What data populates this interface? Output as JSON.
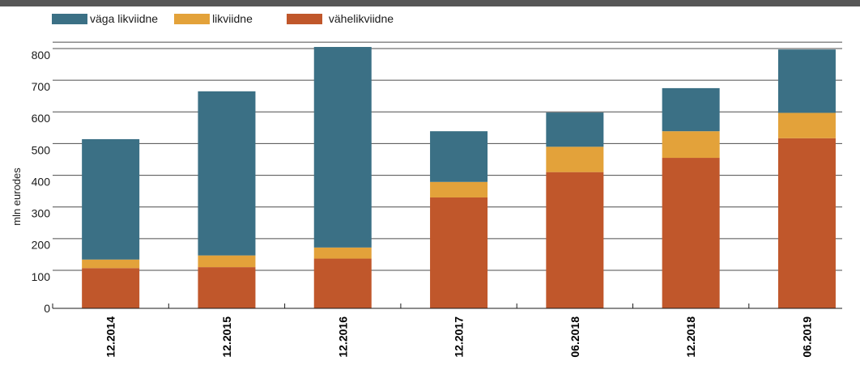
{
  "chart_data": {
    "type": "bar",
    "stacked": true,
    "categories": [
      "12.2014",
      "12.2015",
      "12.2016",
      "12.2017",
      "06.2018",
      "12.2018",
      "06.2019"
    ],
    "series": [
      {
        "name": "vähelikviidne",
        "color": "#C0572B",
        "values": [
          127,
          130,
          157,
          350,
          430,
          475,
          537
        ]
      },
      {
        "name": "likviidne",
        "color": "#E3A23A",
        "values": [
          27,
          37,
          35,
          49,
          80,
          84,
          80
        ]
      },
      {
        "name": "väga likviidne",
        "color": "#3B7085",
        "values": [
          380,
          518,
          633,
          160,
          108,
          136,
          200
        ]
      }
    ],
    "legend": [
      "väga likviidne",
      "likviidne",
      "vähelikviidne"
    ],
    "legend_position": "top-left",
    "ylabel": "mln eurodes",
    "xlabel": "",
    "ylim": [
      0,
      840
    ],
    "yticks": [
      0,
      100,
      200,
      300,
      400,
      500,
      600,
      700,
      800
    ],
    "grid": true
  }
}
